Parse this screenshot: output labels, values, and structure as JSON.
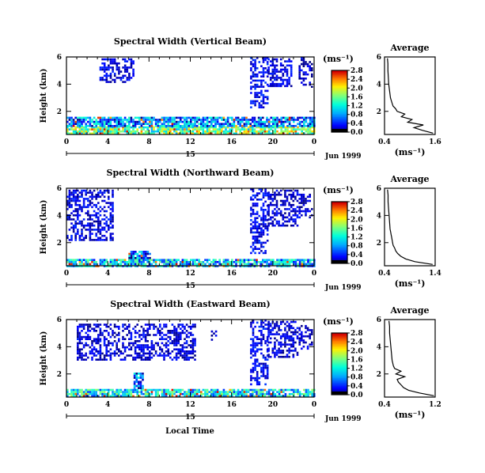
{
  "figure": {
    "common_xlabel": "Local Time",
    "date_label": "Jun 1999",
    "day_label": "15",
    "colorbar_unit": "(ms⁻¹)",
    "avg_xunit": "(ms⁻¹)",
    "avg_title": "Average"
  },
  "chart_data": [
    {
      "type": "heatmap",
      "title": "Spectral Width (Vertical Beam)",
      "ylabel": "Height (km)",
      "xlabel": "Local Time",
      "x_ticks": [
        "0",
        "4",
        "8",
        "12",
        "16",
        "20",
        "0"
      ],
      "xlim": [
        0,
        24
      ],
      "y_ticks": [
        "2",
        "4",
        "6"
      ],
      "ylim": [
        0.3,
        6.0
      ],
      "colorbar": {
        "ticks": [
          "0.0",
          "0.4",
          "0.8",
          "1.2",
          "1.6",
          "2.0",
          "2.4",
          "2.8"
        ],
        "range": [
          0,
          2.8
        ]
      },
      "regions": [
        {
          "x": [
            0,
            24
          ],
          "y": [
            0.3,
            0.9
          ],
          "intensity": 0.55
        },
        {
          "x": [
            0,
            24
          ],
          "y": [
            0.9,
            1.6
          ],
          "intensity": 0.25
        },
        {
          "x": [
            3.2,
            6.4
          ],
          "y": [
            4.1,
            5.9
          ],
          "intensity": 0.08
        },
        {
          "x": [
            17.8,
            19.5
          ],
          "y": [
            2.3,
            6.0
          ],
          "intensity": 0.1
        },
        {
          "x": [
            19.5,
            21.8
          ],
          "y": [
            3.8,
            5.9
          ],
          "intensity": 0.08
        },
        {
          "x": [
            22.5,
            23.8
          ],
          "y": [
            3.8,
            6.0
          ],
          "intensity": 0.06
        }
      ],
      "average_profile": {
        "title": "Average",
        "xlabel": "(ms⁻¹)",
        "x_ticks": [
          "0.4",
          "1.6"
        ],
        "xlim": [
          0.4,
          1.6
        ],
        "y_ticks": [
          "2",
          "4",
          "6"
        ],
        "height": [
          0.4,
          0.6,
          0.8,
          1.0,
          1.2,
          1.4,
          1.6,
          1.8,
          2.0,
          2.2,
          2.4,
          2.6,
          2.8,
          3.0,
          3.5,
          4.0,
          4.5,
          5.0,
          5.5,
          5.9
        ],
        "width": [
          1.55,
          1.3,
          1.1,
          1.32,
          0.95,
          1.05,
          0.8,
          0.88,
          0.7,
          0.66,
          0.6,
          0.58,
          0.56,
          0.54,
          0.52,
          0.5,
          0.49,
          0.48,
          0.48,
          0.47
        ]
      }
    },
    {
      "type": "heatmap",
      "title": "Spectral Width (Northward Beam)",
      "ylabel": "Height (km)",
      "xlabel": "Local Time",
      "x_ticks": [
        "0",
        "4",
        "8",
        "12",
        "16",
        "20",
        "0"
      ],
      "xlim": [
        0,
        24
      ],
      "y_ticks": [
        "2",
        "4",
        "6"
      ],
      "ylim": [
        0.3,
        6.0
      ],
      "colorbar": {
        "ticks": [
          "0.0",
          "0.4",
          "0.8",
          "1.2",
          "1.6",
          "2.0",
          "2.4",
          "2.8"
        ],
        "range": [
          0,
          2.8
        ]
      },
      "regions": [
        {
          "x": [
            0,
            24
          ],
          "y": [
            0.3,
            0.8
          ],
          "intensity": 0.35
        },
        {
          "x": [
            6.0,
            8.0
          ],
          "y": [
            0.8,
            1.4
          ],
          "intensity": 0.2
        },
        {
          "x": [
            0,
            4.4
          ],
          "y": [
            2.2,
            5.9
          ],
          "intensity": 0.08
        },
        {
          "x": [
            17.8,
            19.5
          ],
          "y": [
            1.3,
            6.0
          ],
          "intensity": 0.1
        },
        {
          "x": [
            19.5,
            22.3
          ],
          "y": [
            3.2,
            5.9
          ],
          "intensity": 0.07
        },
        {
          "x": [
            22.5,
            23.8
          ],
          "y": [
            3.8,
            5.6
          ],
          "intensity": 0.06
        }
      ],
      "average_profile": {
        "title": "Average",
        "xlabel": "(ms⁻¹)",
        "x_ticks": [
          "0.4",
          "1.4"
        ],
        "xlim": [
          0.4,
          1.4
        ],
        "y_ticks": [
          "2",
          "4",
          "6"
        ],
        "height": [
          0.4,
          0.6,
          0.8,
          1.0,
          1.2,
          1.4,
          1.6,
          1.8,
          2.0,
          2.2,
          2.4,
          2.6,
          2.8,
          3.0,
          3.5,
          4.0,
          4.5,
          5.0,
          5.5,
          5.9
        ],
        "width": [
          1.35,
          1.0,
          0.82,
          0.72,
          0.66,
          0.62,
          0.6,
          0.57,
          0.56,
          0.55,
          0.54,
          0.53,
          0.52,
          0.51,
          0.5,
          0.49,
          0.48,
          0.47,
          0.47,
          0.46
        ]
      }
    },
    {
      "type": "heatmap",
      "title": "Spectral Width (Eastward Beam)",
      "ylabel": "Height (km)",
      "xlabel": "Local Time",
      "x_ticks": [
        "0",
        "4",
        "8",
        "12",
        "16",
        "20",
        "0"
      ],
      "xlim": [
        0,
        24
      ],
      "y_ticks": [
        "2",
        "4",
        "6"
      ],
      "ylim": [
        0.3,
        6.0
      ],
      "colorbar": {
        "ticks": [
          "0.0",
          "0.4",
          "0.8",
          "1.2",
          "1.6",
          "2.0",
          "2.4",
          "2.8"
        ],
        "range": [
          0,
          2.8
        ]
      },
      "regions": [
        {
          "x": [
            0,
            24
          ],
          "y": [
            0.3,
            0.9
          ],
          "intensity": 0.4
        },
        {
          "x": [
            6.5,
            7.3
          ],
          "y": [
            0.9,
            2.1
          ],
          "intensity": 0.2
        },
        {
          "x": [
            1.0,
            12.5
          ],
          "y": [
            3.1,
            5.7
          ],
          "intensity": 0.07
        },
        {
          "x": [
            14.0,
            14.5
          ],
          "y": [
            4.5,
            5.2
          ],
          "intensity": 0.06
        },
        {
          "x": [
            17.8,
            19.5
          ],
          "y": [
            1.3,
            6.0
          ],
          "intensity": 0.1
        },
        {
          "x": [
            19.5,
            22.3
          ],
          "y": [
            3.2,
            5.9
          ],
          "intensity": 0.07
        },
        {
          "x": [
            22.5,
            23.8
          ],
          "y": [
            3.8,
            5.6
          ],
          "intensity": 0.06
        }
      ],
      "average_profile": {
        "title": "Average",
        "xlabel": "(ms⁻¹)",
        "x_ticks": [
          "0.4",
          "1.2"
        ],
        "xlim": [
          0.4,
          1.2
        ],
        "y_ticks": [
          "2",
          "4",
          "6"
        ],
        "height": [
          0.4,
          0.6,
          0.8,
          1.0,
          1.2,
          1.4,
          1.6,
          1.8,
          2.0,
          2.2,
          2.4,
          2.6,
          2.8,
          3.0,
          3.5,
          4.0,
          4.5,
          5.0,
          5.5,
          5.9
        ],
        "width": [
          1.18,
          0.95,
          0.78,
          0.7,
          0.66,
          0.62,
          0.6,
          0.72,
          0.58,
          0.66,
          0.56,
          0.54,
          0.53,
          0.52,
          0.51,
          0.5,
          0.49,
          0.48,
          0.48,
          0.47
        ]
      }
    }
  ]
}
